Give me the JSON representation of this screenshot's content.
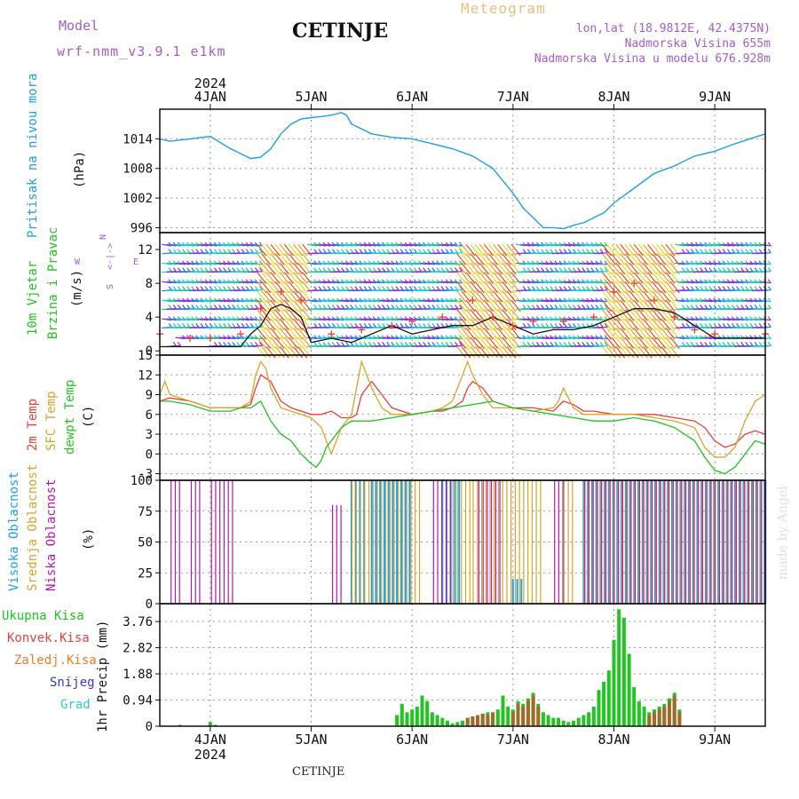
{
  "header": {
    "model_label": "Model",
    "model_name": "wrf-nmm_v3.9.1 e1km",
    "location": "CETINJE",
    "product": "Meteogram",
    "coords": "lon,lat (18.9812E, 42.4375N)",
    "altitude": "Nadmorska Visina 655m",
    "model_altitude": "Nadmorska Visina u modelu 676.928m",
    "watermark": "made by Angel",
    "footer_location": "CETINJE"
  },
  "colors": {
    "pressure": "#1ea0e6",
    "temp2m": "#e8403c",
    "sfc": "#d7a42c",
    "dew": "#22c422",
    "low_cloud": "#b21ba8",
    "mid_cloud": "#d7a42c",
    "high_cloud": "#1ea0e6",
    "precip_total": "#22c422",
    "precip_conv": "#e8403c",
    "precip_frozen": "#f07a28",
    "snow": "#3a36d8",
    "grad": "#33c6c6",
    "label_purple": "#a65cc8"
  },
  "time_axis": {
    "year": "2024",
    "days": [
      "4JAN",
      "5JAN",
      "6JAN",
      "7JAN",
      "8JAN",
      "9JAN"
    ]
  },
  "chart_data": [
    {
      "type": "line",
      "title": "Pritisak na nivou mora",
      "ylabel": "(hPa)",
      "ylim": [
        995,
        1020
      ],
      "yticks": [
        996,
        1002,
        1008,
        1014
      ],
      "xlim": [
        -0.5,
        5.5
      ],
      "grid": true,
      "series": [
        {
          "name": "Pritisak na nivou mora",
          "x": [
            -0.5,
            -0.4,
            -0.2,
            0,
            0.2,
            0.3,
            0.4,
            0.5,
            0.6,
            0.7,
            0.8,
            0.9,
            1.0,
            1.1,
            1.2,
            1.3,
            1.35,
            1.4,
            1.6,
            1.8,
            2.0,
            2.2,
            2.4,
            2.6,
            2.8,
            3.0,
            3.1,
            3.2,
            3.3,
            3.4,
            3.5,
            3.6,
            3.7,
            3.8,
            3.9,
            4.0,
            4.2,
            4.4,
            4.6,
            4.8,
            5.0,
            5.2,
            5.5
          ],
          "y": [
            1014,
            1013.5,
            1014,
            1014.5,
            1012,
            1011,
            1010,
            1010.3,
            1012,
            1015,
            1017,
            1018,
            1018.3,
            1018.5,
            1018.8,
            1019.3,
            1018.8,
            1017,
            1015,
            1014.3,
            1014,
            1013,
            1012,
            1010.5,
            1008,
            1003,
            1000,
            998,
            996,
            996,
            995.8,
            996.5,
            997,
            998,
            999,
            1001,
            1004,
            1007,
            1008.5,
            1010.5,
            1011.5,
            1013,
            1015
          ]
        }
      ]
    },
    {
      "type": "line",
      "title": "10m Vjetar Brzina i Pravac",
      "ylabel": "(m/s)",
      "ylim": [
        -0.5,
        14
      ],
      "yticks": [
        0,
        4,
        8,
        12
      ],
      "compass_labels": [
        "N",
        "<-|->",
        "E",
        "W",
        "S"
      ],
      "xlim": [
        -0.5,
        5.5
      ],
      "series": [
        {
          "name": "speed",
          "x": [
            -0.5,
            -0.2,
            0,
            0.3,
            0.4,
            0.5,
            0.6,
            0.7,
            0.8,
            0.9,
            1.0,
            1.2,
            1.4,
            1.6,
            1.8,
            2.0,
            2.2,
            2.4,
            2.6,
            2.8,
            3.0,
            3.2,
            3.4,
            3.6,
            3.8,
            4.0,
            4.2,
            4.4,
            4.6,
            4.8,
            5.0,
            5.2,
            5.5
          ],
          "y": [
            0.5,
            0.5,
            0.5,
            0.5,
            2,
            3,
            5,
            5.5,
            5,
            4,
            1,
            1.5,
            1,
            2,
            3,
            2,
            2.5,
            3,
            3,
            4,
            3,
            2,
            2.5,
            2.5,
            3,
            4,
            5,
            5,
            4.5,
            3,
            1.5,
            1.5,
            1.5
          ]
        },
        {
          "name": "gust",
          "x": [
            -0.5,
            -0.2,
            0,
            0.3,
            0.5,
            0.7,
            0.9,
            1.2,
            1.5,
            1.8,
            2.0,
            2.3,
            2.6,
            2.8,
            3.0,
            3.2,
            3.5,
            3.8,
            4.0,
            4.2,
            4.4,
            4.6,
            4.8,
            5.0,
            5.5
          ],
          "y": [
            2,
            1.5,
            1.5,
            2,
            5,
            7,
            6,
            2,
            2.5,
            3,
            3.5,
            4,
            6,
            4,
            3,
            3.5,
            3.5,
            4,
            7,
            8,
            6,
            4,
            2.5,
            2,
            2
          ]
        }
      ]
    },
    {
      "type": "line",
      "ylabel": "(C)",
      "ylim": [
        -4,
        15
      ],
      "yticks": [
        -3,
        0,
        3,
        6,
        9,
        12,
        15
      ],
      "xlim": [
        -0.5,
        5.5
      ],
      "grid": true,
      "series": [
        {
          "name": "2m Temp",
          "x": [
            -0.5,
            -0.4,
            -0.2,
            0,
            0.2,
            0.3,
            0.4,
            0.45,
            0.5,
            0.6,
            0.7,
            0.8,
            1.0,
            1.1,
            1.2,
            1.3,
            1.4,
            1.45,
            1.5,
            1.6,
            1.7,
            1.8,
            2.0,
            2.2,
            2.3,
            2.4,
            2.5,
            2.55,
            2.6,
            2.7,
            2.8,
            3.0,
            3.2,
            3.4,
            3.5,
            3.6,
            3.7,
            3.8,
            4.0,
            4.2,
            4.4,
            4.6,
            4.8,
            4.9,
            5.0,
            5.1,
            5.2,
            5.3,
            5.4,
            5.5
          ],
          "y": [
            8,
            8.5,
            8,
            7,
            7,
            7,
            7.5,
            10,
            12,
            11,
            8,
            7,
            6,
            6,
            6.5,
            5.5,
            5.5,
            6,
            9,
            11,
            9,
            7,
            6,
            6.5,
            6.5,
            7,
            8,
            10,
            11,
            10,
            8,
            7,
            7,
            6.5,
            8,
            7.5,
            6.5,
            6.5,
            6,
            6,
            6,
            5.5,
            5,
            4,
            2,
            1,
            1.5,
            3,
            3.5,
            3
          ]
        },
        {
          "name": "SFC Temp",
          "x": [
            -0.5,
            -0.45,
            -0.4,
            -0.2,
            0,
            0.2,
            0.3,
            0.4,
            0.45,
            0.5,
            0.55,
            0.6,
            0.7,
            0.8,
            1.0,
            1.1,
            1.15,
            1.2,
            1.25,
            1.3,
            1.4,
            1.45,
            1.5,
            1.6,
            1.7,
            1.8,
            2.0,
            2.2,
            2.3,
            2.4,
            2.5,
            2.55,
            2.6,
            2.7,
            2.8,
            3.0,
            3.2,
            3.4,
            3.45,
            3.5,
            3.6,
            3.7,
            3.8,
            4.0,
            4.2,
            4.4,
            4.6,
            4.8,
            4.9,
            5.0,
            5.1,
            5.2,
            5.3,
            5.4,
            5.5
          ],
          "y": [
            9,
            11,
            9,
            8,
            7,
            7,
            7,
            8,
            12,
            14,
            13,
            10,
            7,
            6.5,
            5.5,
            4,
            2,
            0,
            2,
            4,
            6,
            10,
            14,
            10,
            7,
            6,
            6,
            6.5,
            7,
            8,
            12,
            14,
            12,
            9,
            7,
            7,
            6.5,
            7,
            8,
            10,
            7,
            6,
            6,
            6,
            6,
            5.5,
            5,
            4,
            1,
            -0.5,
            -0.5,
            1,
            5,
            8,
            9
          ]
        },
        {
          "name": "dewpt Temp",
          "x": [
            -0.5,
            -0.4,
            -0.2,
            0,
            0.2,
            0.3,
            0.4,
            0.5,
            0.6,
            0.7,
            0.8,
            0.9,
            1.0,
            1.05,
            1.1,
            1.15,
            1.2,
            1.3,
            1.4,
            1.6,
            1.8,
            2.0,
            2.2,
            2.4,
            2.6,
            2.8,
            3.0,
            3.2,
            3.4,
            3.6,
            3.8,
            4.0,
            4.2,
            4.4,
            4.6,
            4.8,
            4.9,
            5.0,
            5.1,
            5.2,
            5.3,
            5.4,
            5.5
          ],
          "y": [
            8,
            8,
            7.5,
            6.5,
            6.5,
            7,
            7,
            8,
            5,
            3,
            2,
            0,
            -1.5,
            -2,
            -1,
            1,
            2,
            4,
            5,
            5,
            5.5,
            6,
            6.5,
            7,
            7.5,
            8,
            7,
            6.5,
            6,
            5.5,
            5,
            5,
            5.5,
            5,
            4,
            2,
            -0.5,
            -2.5,
            -3,
            -2,
            0,
            2,
            1.5
          ]
        }
      ]
    },
    {
      "type": "bar",
      "ylabel": "(%)",
      "ylim": [
        0,
        100
      ],
      "yticks": [
        0,
        25,
        50,
        75,
        100
      ],
      "xlim": [
        -0.5,
        5.5
      ],
      "grid": true,
      "series": [
        {
          "name": "Visoka Oblacnost",
          "segments": [
            [
              1.4,
              1.55,
              100
            ],
            [
              1.6,
              2.0,
              100
            ],
            [
              2.3,
              2.5,
              100
            ],
            [
              3.0,
              3.1,
              20
            ],
            [
              3.7,
              5.5,
              100
            ]
          ]
        },
        {
          "name": "Srednja Oblacnost",
          "segments": [
            [
              1.4,
              2.1,
              100
            ],
            [
              2.4,
              2.6,
              100
            ],
            [
              2.6,
              3.3,
              100
            ],
            [
              3.5,
              3.6,
              100
            ],
            [
              3.7,
              5.5,
              100
            ]
          ]
        },
        {
          "name": "Niska Oblacnost",
          "segments": [
            [
              -0.4,
              -0.3,
              100
            ],
            [
              -0.2,
              -0.1,
              100
            ],
            [
              0.0,
              0.25,
              100
            ],
            [
              1.2,
              1.3,
              80
            ],
            [
              2.2,
              2.4,
              100
            ],
            [
              2.65,
              2.9,
              100
            ],
            [
              3.4,
              3.5,
              100
            ],
            [
              3.7,
              5.5,
              100
            ]
          ]
        }
      ]
    },
    {
      "type": "bar",
      "ylabel": "1hr Precip (mm)",
      "ylim": [
        0,
        4.4
      ],
      "yticks": [
        0,
        0.94,
        1.88,
        2.82,
        3.76
      ],
      "xlim": [
        -0.5,
        5.5
      ],
      "grid": true,
      "series": [
        {
          "name": "Ukupna Kisa",
          "x": [
            -0.3,
            0.0,
            0.05,
            1.85,
            1.9,
            1.95,
            2.0,
            2.05,
            2.1,
            2.15,
            2.2,
            2.25,
            2.3,
            2.35,
            2.4,
            2.45,
            2.5,
            2.55,
            2.6,
            2.65,
            2.7,
            2.75,
            2.8,
            2.85,
            2.9,
            2.95,
            3.0,
            3.05,
            3.1,
            3.15,
            3.2,
            3.25,
            3.3,
            3.35,
            3.4,
            3.45,
            3.5,
            3.55,
            3.6,
            3.65,
            3.7,
            3.75,
            3.8,
            3.85,
            3.9,
            3.95,
            4.0,
            4.05,
            4.1,
            4.15,
            4.2,
            4.25,
            4.3,
            4.35,
            4.4,
            4.45,
            4.5,
            4.55,
            4.6,
            4.65
          ],
          "y": [
            0.05,
            0.15,
            0.05,
            0.4,
            0.8,
            0.5,
            0.6,
            0.7,
            1.1,
            0.9,
            0.5,
            0.4,
            0.3,
            0.2,
            0.1,
            0.15,
            0.2,
            0.3,
            0.35,
            0.4,
            0.45,
            0.5,
            0.45,
            0.6,
            1.1,
            0.7,
            0.6,
            0.9,
            0.8,
            1.0,
            1.2,
            0.8,
            0.5,
            0.4,
            0.3,
            0.3,
            0.2,
            0.15,
            0.2,
            0.3,
            0.4,
            0.5,
            0.7,
            1.3,
            1.6,
            2.0,
            3.1,
            4.2,
            3.9,
            2.6,
            1.4,
            0.9,
            0.7,
            0.5,
            0.6,
            0.7,
            0.8,
            1.0,
            1.2,
            0.6
          ]
        },
        {
          "name": "Konvek.Kisa",
          "x": [
            2.55,
            2.6,
            2.65,
            2.7,
            2.75,
            2.8,
            3.0,
            3.05,
            3.1,
            3.15,
            3.2,
            3.25,
            4.35,
            4.4,
            4.45,
            4.5,
            4.55,
            4.6,
            4.65
          ],
          "y": [
            0.3,
            0.35,
            0.4,
            0.45,
            0.4,
            0.5,
            0.5,
            0.8,
            0.7,
            0.9,
            1.1,
            0.7,
            0.4,
            0.5,
            0.6,
            0.7,
            0.9,
            1.1,
            0.5
          ]
        }
      ]
    }
  ],
  "panel_labels": {
    "pressure": "Pritisak na nivou mora",
    "pressure_unit": "(hPa)",
    "wind1": "10m Vjetar",
    "wind2": "Brzina i Pravac",
    "wind_unit": "(m/s)",
    "temp_2m": "2m Temp",
    "temp_sfc": "SFC Temp",
    "temp_dew": "dewpt Temp",
    "temp_unit": "(C)",
    "cloud_high": "Visoka Oblacnost",
    "cloud_mid": "Srednja Oblacnost",
    "cloud_low": "Niska Oblacnost",
    "cloud_unit": "(%)",
    "precip_unit": "1hr Precip (mm)",
    "precip_total": "Ukupna Kisa",
    "precip_conv": "Konvek.Kisa",
    "precip_frozen": "Zaledj.Kisa",
    "precip_snow": "Snijeg",
    "precip_grad": "Grad"
  }
}
